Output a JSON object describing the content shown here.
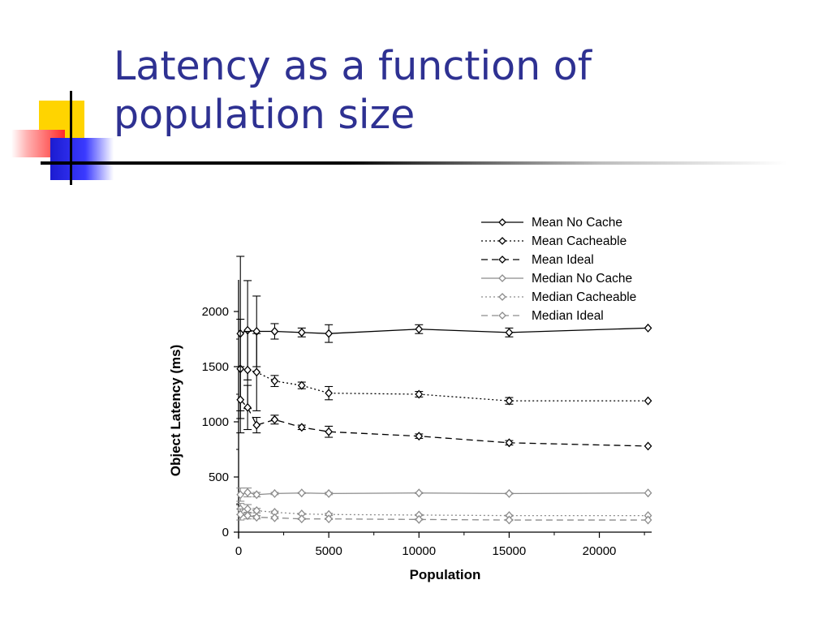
{
  "slide": {
    "title_line1": "Latency as a function of",
    "title_line2": "population size"
  },
  "colors": {
    "title": "#2e3192",
    "mean_series": "#000000",
    "median_series": "#8c8c8c"
  },
  "chart_data": {
    "type": "line",
    "title": "",
    "xlabel": "Population",
    "ylabel": "Object Latency (ms)",
    "xlim": [
      0,
      22900
    ],
    "ylim": [
      0,
      2250
    ],
    "xticks": [
      0,
      5000,
      10000,
      15000,
      20000
    ],
    "yticks": [
      0,
      500,
      1000,
      1500,
      2000
    ],
    "legend_position": "top-right",
    "x": [
      100,
      500,
      1000,
      2000,
      3500,
      5000,
      10000,
      15000,
      22700
    ],
    "series": [
      {
        "name": "Mean No Cache",
        "style": "solid",
        "color": "#000000",
        "values": [
          1800,
          1830,
          1820,
          1820,
          1810,
          1800,
          1840,
          1810,
          1850
        ],
        "errors": [
          700,
          450,
          320,
          70,
          40,
          80,
          40,
          40,
          0
        ]
      },
      {
        "name": "Mean Cacheable",
        "style": "dotted",
        "color": "#000000",
        "values": [
          1480,
          1470,
          1450,
          1370,
          1330,
          1260,
          1250,
          1190,
          1190
        ],
        "errors": [
          450,
          350,
          350,
          50,
          30,
          60,
          25,
          30,
          0
        ]
      },
      {
        "name": "Mean Ideal",
        "style": "dashed",
        "color": "#000000",
        "values": [
          1200,
          1130,
          970,
          1020,
          950,
          910,
          870,
          810,
          780
        ],
        "errors": [
          300,
          200,
          70,
          40,
          20,
          50,
          20,
          20,
          0
        ]
      },
      {
        "name": "Median No Cache",
        "style": "solid",
        "color": "#8c8c8c",
        "values": [
          340,
          360,
          340,
          350,
          355,
          350,
          355,
          350,
          355
        ],
        "errors": [
          60,
          40,
          20,
          10,
          5,
          10,
          5,
          5,
          0
        ]
      },
      {
        "name": "Median Cacheable",
        "style": "dotted",
        "color": "#8c8c8c",
        "values": [
          210,
          210,
          195,
          180,
          165,
          160,
          155,
          150,
          150
        ],
        "errors": [
          50,
          40,
          20,
          10,
          5,
          10,
          5,
          5,
          0
        ]
      },
      {
        "name": "Median Ideal",
        "style": "dashed",
        "color": "#8c8c8c",
        "values": [
          160,
          150,
          135,
          130,
          120,
          120,
          115,
          110,
          110
        ],
        "errors": [
          50,
          30,
          15,
          10,
          5,
          5,
          5,
          5,
          0
        ]
      }
    ]
  }
}
